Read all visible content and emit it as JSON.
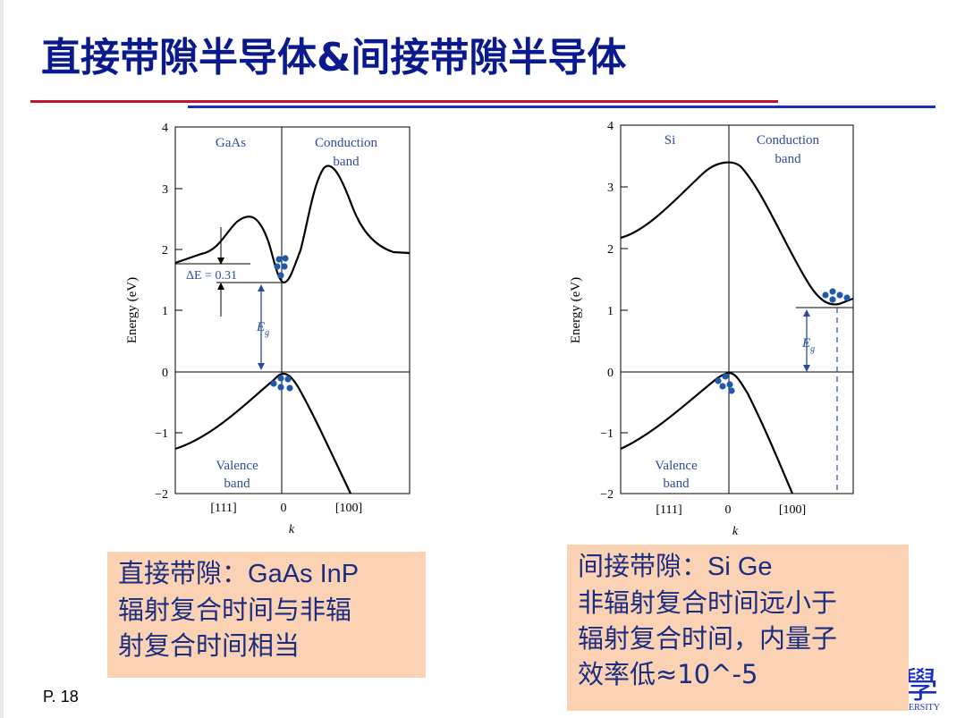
{
  "slide": {
    "title": "直接带隙半导体&间接带隙半导体",
    "page_label": "P. 18",
    "logo_glyph": "學",
    "logo_caption": "SHANGHAI JIAO TONG UNIVERSITY"
  },
  "chart_data": [
    {
      "type": "line",
      "material": "GaAs",
      "ylabel": "Energy (eV)",
      "xlabel": "k",
      "ylim": [
        -2,
        4
      ],
      "yticks": [
        "−2",
        "−1",
        "0",
        "1",
        "2",
        "3",
        "4"
      ],
      "xticks": [
        "[111]",
        "0",
        "[100]"
      ],
      "conduction_label": [
        "Conduction",
        "band"
      ],
      "valence_label": [
        "Valence",
        "band"
      ],
      "delta_e_label": "ΔE = 0.31",
      "eg_label": "E",
      "eg_sub": "g",
      "conduction_band_min_eV": 1.43,
      "side_valley_eV": 1.74
    },
    {
      "type": "line",
      "material": "Si",
      "ylabel": "Energy (eV)",
      "xlabel": "k",
      "ylim": [
        -2,
        4
      ],
      "yticks": [
        "−2",
        "−1",
        "0",
        "1",
        "2",
        "3",
        "4"
      ],
      "xticks": [
        "[111]",
        "0",
        "[100]"
      ],
      "conduction_label": [
        "Conduction",
        "band"
      ],
      "valence_label": [
        "Valence",
        "band"
      ],
      "eg_label": "E",
      "eg_sub": "g",
      "conduction_band_min_eV": 1.07
    }
  ],
  "notes": {
    "direct": {
      "line1_prefix": "直接带隙：",
      "line1_examples": "GaAs InP",
      "line2": "辐射复合时间与非辐",
      "line3": "射复合时间相当"
    },
    "indirect": {
      "line1_prefix": "间接带隙：",
      "line1_examples": "Si Ge",
      "line2": "非辐射复合时间远小于",
      "line3": "辐射复合时间，内量子",
      "line4": "效率低≈10^-5"
    }
  },
  "colors": {
    "title": "#0a1a8c",
    "rule_red": "#c8102e",
    "rule_blue": "#1a2fc0",
    "annotation_blue": "#2a4b9b",
    "carrier_dot": "#1f5aa8",
    "note_bg": "#fbd3b4",
    "note_text": "#1a2d80"
  }
}
